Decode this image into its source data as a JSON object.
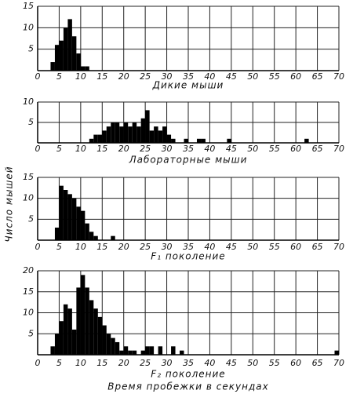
{
  "chart_data": [
    {
      "type": "histogram",
      "xlabel": "Дикие мыши",
      "color": "#000000",
      "grid": true,
      "bins": [
        3,
        4,
        5,
        6,
        7,
        8,
        9,
        10,
        11,
        12
      ],
      "values": [
        2,
        6,
        7,
        10,
        12,
        8,
        4,
        1,
        1
      ],
      "xlim": [
        0,
        70
      ],
      "xticks": [
        0,
        5,
        10,
        15,
        20,
        25,
        30,
        35,
        40,
        45,
        50,
        55,
        60,
        65,
        70
      ],
      "ylim": [
        0,
        15
      ],
      "yticks": [
        5,
        10,
        15
      ]
    },
    {
      "type": "histogram",
      "xlabel": "Лабораторные мыши",
      "color": "#000000",
      "grid": true,
      "bins": [
        12,
        13,
        14,
        15,
        16,
        17,
        18,
        19,
        20,
        21,
        22,
        23,
        24,
        25,
        26,
        27,
        28,
        29,
        30,
        31,
        32,
        33,
        34,
        35,
        36,
        37,
        38,
        39,
        40,
        41,
        42,
        43,
        44,
        45,
        46,
        47,
        48,
        49,
        50,
        51,
        52,
        53,
        54,
        55,
        56,
        57,
        58,
        59,
        60,
        61,
        62,
        63
      ],
      "values": [
        1,
        2,
        2,
        3,
        4,
        5,
        5,
        4,
        5,
        4,
        5,
        4,
        6,
        8,
        3,
        4,
        3,
        4,
        2,
        1,
        0,
        0,
        1,
        0,
        0,
        1,
        1,
        0,
        0,
        0,
        0,
        0,
        1,
        0,
        0,
        0,
        0,
        0,
        0,
        0,
        0,
        0,
        0,
        0,
        0,
        0,
        0,
        0,
        0,
        0,
        1
      ],
      "xlim": [
        0,
        70
      ],
      "xticks": [
        0,
        5,
        10,
        15,
        20,
        25,
        30,
        35,
        40,
        45,
        50,
        55,
        60,
        65,
        70
      ],
      "ylim": [
        0,
        10
      ],
      "yticks": [
        5,
        10
      ]
    },
    {
      "type": "histogram",
      "xlabel": "F₁ поколение",
      "color": "#000000",
      "grid": true,
      "bins": [
        4,
        5,
        6,
        7,
        8,
        9,
        10,
        11,
        12,
        13,
        14,
        15,
        16,
        17,
        18
      ],
      "values": [
        3,
        13,
        12,
        11,
        10,
        8,
        7,
        4,
        2,
        1,
        0,
        0,
        0,
        1
      ],
      "xlim": [
        0,
        70
      ],
      "xticks": [
        0,
        5,
        10,
        15,
        20,
        25,
        30,
        35,
        40,
        45,
        50,
        55,
        60,
        65,
        70
      ],
      "ylim": [
        0,
        15
      ],
      "yticks": [
        5,
        10,
        15
      ]
    },
    {
      "type": "histogram",
      "xlabel": "F₂ поколение",
      "color": "#000000",
      "grid": true,
      "bins": [
        3,
        4,
        5,
        6,
        7,
        8,
        9,
        10,
        11,
        12,
        13,
        14,
        15,
        16,
        17,
        18,
        19,
        20,
        21,
        22,
        23,
        24,
        25,
        26,
        27,
        28,
        29,
        30,
        31,
        32,
        33,
        34,
        35,
        36,
        37,
        38,
        39,
        40,
        41,
        42,
        43,
        44,
        45,
        46,
        47,
        48,
        49,
        50,
        51,
        52,
        53,
        54,
        55,
        56,
        57,
        58,
        59,
        60,
        61,
        62,
        63,
        64,
        65,
        66,
        67,
        68,
        69,
        70
      ],
      "values": [
        2,
        5,
        8,
        12,
        11,
        6,
        16,
        19,
        16,
        13,
        11,
        9,
        7,
        5,
        4,
        3,
        1,
        2,
        1,
        1,
        0,
        1,
        2,
        2,
        0,
        2,
        0,
        0,
        2,
        0,
        1,
        0,
        0,
        0,
        0,
        0,
        0,
        0,
        0,
        0,
        0,
        0,
        0,
        0,
        0,
        0,
        0,
        0,
        0,
        0,
        0,
        0,
        0,
        0,
        0,
        0,
        0,
        0,
        0,
        0,
        0,
        0,
        0,
        0,
        0,
        0,
        1
      ],
      "xlim": [
        0,
        70
      ],
      "xticks": [
        0,
        5,
        10,
        15,
        20,
        25,
        30,
        35,
        40,
        45,
        50,
        55,
        60,
        65,
        70
      ],
      "ylim": [
        0,
        20
      ],
      "yticks": [
        5,
        10,
        15,
        20
      ]
    }
  ],
  "ylabel": "Число мышей",
  "xlabel": "Время пробежки в секундах"
}
